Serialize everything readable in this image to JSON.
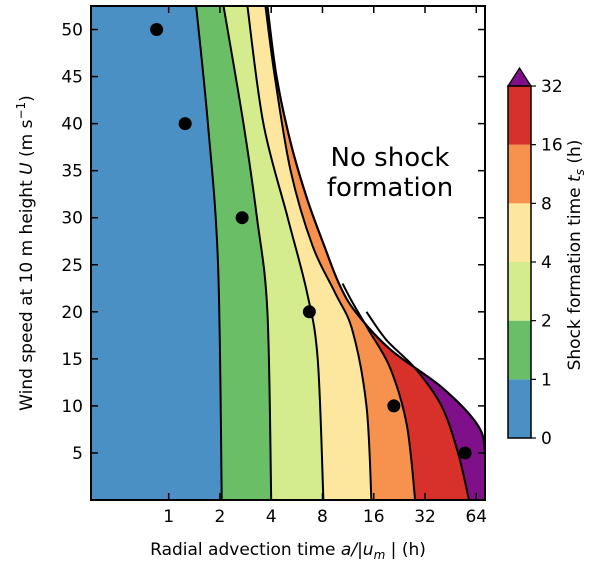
{
  "chart_data": {
    "type": "heatmap",
    "xlabel_prefix": "Radial advection time ",
    "xlabel_math": "a/|u",
    "xlabel_sub": "m",
    "xlabel_suffix": " | (h)",
    "ylabel_prefix": "Wind speed at 10 m height ",
    "ylabel_math": "U",
    "ylabel_units_a": " (m s",
    "ylabel_units_sup": "−1",
    "ylabel_units_b": ")",
    "x_scale": "log2",
    "xlim": [
      0.35,
      72
    ],
    "ylim": [
      0,
      52.5
    ],
    "x_ticks": [
      {
        "value": 1,
        "label": "1"
      },
      {
        "value": 2,
        "label": "2"
      },
      {
        "value": 4,
        "label": "4"
      },
      {
        "value": 8,
        "label": "8"
      },
      {
        "value": 16,
        "label": "16"
      },
      {
        "value": 32,
        "label": "32"
      },
      {
        "value": 64,
        "label": "64"
      }
    ],
    "y_ticks": [
      {
        "value": 5,
        "label": "5"
      },
      {
        "value": 10,
        "label": "10"
      },
      {
        "value": 15,
        "label": "15"
      },
      {
        "value": 20,
        "label": "20"
      },
      {
        "value": 25,
        "label": "25"
      },
      {
        "value": 30,
        "label": "30"
      },
      {
        "value": 35,
        "label": "35"
      },
      {
        "value": 40,
        "label": "40"
      },
      {
        "value": 45,
        "label": "45"
      },
      {
        "value": 50,
        "label": "50"
      }
    ],
    "annotation_line1": "No shock",
    "annotation_line2": "formation",
    "annotation_position": "upper-right",
    "colorbar": {
      "label_prefix": "Shock formation time ",
      "label_math": "t",
      "label_sub": "s",
      "label_suffix": " (h)",
      "levels": [
        {
          "from": "0",
          "to": "1",
          "color": "#4a90c4"
        },
        {
          "from": "1",
          "to": "2",
          "color": "#6abe65"
        },
        {
          "from": "2",
          "to": "4",
          "color": "#d4ec8e"
        },
        {
          "from": "4",
          "to": "8",
          "color": "#fde79e"
        },
        {
          "from": "8",
          "to": "16",
          "color": "#f6914e"
        },
        {
          "from": "16",
          "to": "32",
          "color": "#d73129"
        },
        {
          "from": "32",
          "to": "",
          "color": "#800f8a"
        }
      ],
      "tick_labels": [
        "0",
        "1",
        "2",
        "4",
        "8",
        "16",
        "32"
      ],
      "extend": "max"
    },
    "contour_boundaries": [
      {
        "level": 1,
        "x_at_U": [
          [
            0,
            2.05
          ],
          [
            25,
            1.95
          ],
          [
            40,
            1.7
          ],
          [
            52.5,
            1.45
          ]
        ]
      },
      {
        "level": 2,
        "x_at_U": [
          [
            0,
            4.0
          ],
          [
            20,
            3.8
          ],
          [
            30,
            3.3
          ],
          [
            40,
            2.75
          ],
          [
            52.5,
            2.1
          ]
        ]
      },
      {
        "level": 4,
        "x_at_U": [
          [
            0,
            8.1
          ],
          [
            15,
            7.5
          ],
          [
            22,
            6.5
          ],
          [
            30,
            5.0
          ],
          [
            40,
            3.6
          ],
          [
            52.5,
            2.9
          ]
        ]
      },
      {
        "level": 8,
        "x_at_U": [
          [
            0,
            15.5
          ],
          [
            10,
            14.5
          ],
          [
            18,
            12.0
          ],
          [
            22,
            9.5
          ],
          [
            27,
            7.0
          ],
          [
            35,
            5.2
          ],
          [
            45,
            4.2
          ],
          [
            52.5,
            3.7
          ]
        ]
      },
      {
        "level": 16,
        "x_at_U": [
          [
            0,
            28
          ],
          [
            8,
            25
          ],
          [
            14,
            20
          ],
          [
            18,
            15
          ],
          [
            21,
            12
          ],
          [
            23,
            10.5
          ]
        ]
      },
      {
        "level": 32,
        "x_at_U": [
          [
            0,
            58
          ],
          [
            5,
            50
          ],
          [
            10,
            40
          ],
          [
            14,
            28
          ],
          [
            17,
            19
          ],
          [
            20,
            14.5
          ]
        ]
      }
    ],
    "no_shock_boundary": [
      [
        0,
        72
      ],
      [
        5,
        72
      ],
      [
        8,
        65
      ],
      [
        12,
        40
      ],
      [
        16,
        20
      ],
      [
        20,
        12.5
      ],
      [
        23,
        10
      ],
      [
        27,
        8.2
      ],
      [
        32,
        6.5
      ],
      [
        38,
        5.2
      ],
      [
        45,
        4.3
      ],
      [
        52.5,
        3.8
      ]
    ],
    "points": [
      {
        "x": 0.85,
        "y": 50
      },
      {
        "x": 1.25,
        "y": 40
      },
      {
        "x": 2.7,
        "y": 30
      },
      {
        "x": 6.7,
        "y": 20
      },
      {
        "x": 21,
        "y": 10
      },
      {
        "x": 55,
        "y": 5
      }
    ]
  }
}
